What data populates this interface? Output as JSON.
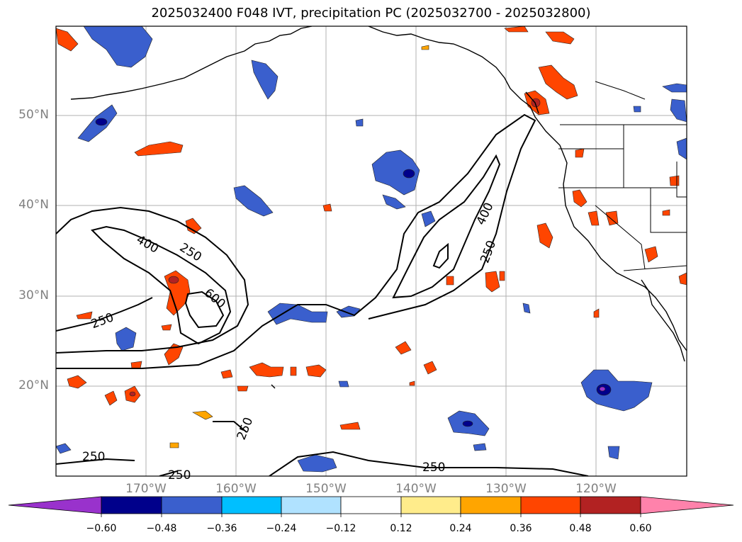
{
  "title": "2025032400 F048 IVT, precipitation PC (2025032700 - 2025032800)",
  "lat_labels": [
    "50°N",
    "40°N",
    "30°N",
    "20°N"
  ],
  "lon_labels": [
    "170°W",
    "160°W",
    "150°W",
    "140°W",
    "130°W",
    "120°W"
  ],
  "contour_labels": [
    "400",
    "250",
    "600",
    "250",
    "400",
    "250",
    "250",
    "250",
    "250",
    "250"
  ],
  "colorbar": {
    "colors": [
      "#9932CC",
      "#00008B",
      "#3A5FCD",
      "#00BFFF",
      "#B0E2FF",
      "#FFFFFF",
      "#FFEC8B",
      "#FFA500",
      "#FF4500",
      "#B22222",
      "#FF82AB"
    ],
    "ticks": [
      "−0.60",
      "−0.48",
      "−0.36",
      "−0.24",
      "−0.12",
      "0.12",
      "0.24",
      "0.36",
      "0.48",
      "0.60"
    ]
  }
}
